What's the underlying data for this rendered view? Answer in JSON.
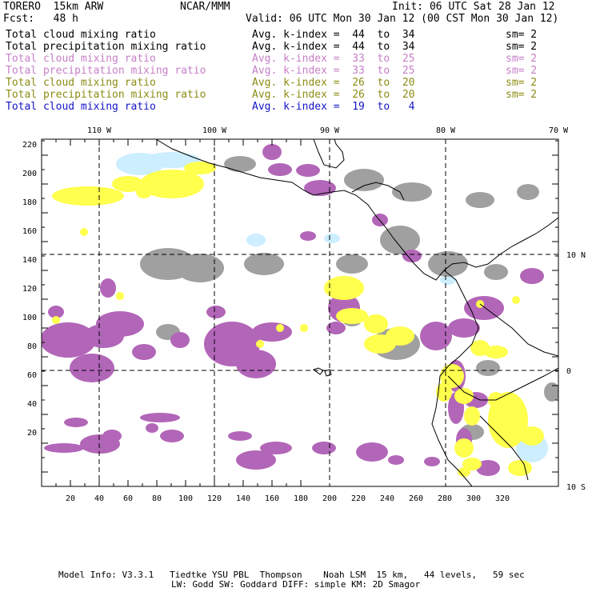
{
  "header": {
    "model": "TORERO  15km ARW",
    "org": "NCAR/MMM",
    "init": "Init: 06 UTC Sat 28 Jan 12",
    "fcst": "Fcst:   48 h",
    "valid": "Valid: 06 UTC Mon 30 Jan 12 (00 CST Mon 30 Jan 12)"
  },
  "legend": [
    {
      "field": "Total cloud mixing ratio",
      "stat": "Avg. k-index =  44  to  34",
      "sm": "sm= 2",
      "color": "#000000"
    },
    {
      "field": "Total precipitation mixing ratio",
      "stat": "Avg. k-index =  44  to  34",
      "sm": "sm= 2",
      "color": "#000000"
    },
    {
      "field": "Total cloud mixing ratio",
      "stat": "Avg. k-index =  33  to  25",
      "sm": "sm= 2",
      "color": "#c77fc7"
    },
    {
      "field": "Total precipitation mixing ratio",
      "stat": "Avg. k-index =  33  to  25",
      "sm": "sm= 2",
      "color": "#c77fc7"
    },
    {
      "field": "Total cloud mixing ratio",
      "stat": "Avg. k-index =  26  to  20",
      "sm": "sm= 2",
      "color": "#8c8c14"
    },
    {
      "field": "Total precipitation mixing ratio",
      "stat": "Avg. k-index =  26  to  20",
      "sm": "sm= 2",
      "color": "#8c8c14"
    },
    {
      "field": "Total cloud mixing ratio",
      "stat": "Avg. k-index =  19  to   4",
      "sm": "",
      "color": "#1414c8"
    }
  ],
  "map": {
    "lon_labels": [
      "110 W",
      "100 W",
      "90 W",
      "80 W",
      "70 W"
    ],
    "lat_labels": [
      "10 N",
      "0",
      "10 S"
    ],
    "y_ticks": [
      "220",
      "200",
      "180",
      "160",
      "140",
      "120",
      "100",
      "80",
      "60",
      "40",
      "20"
    ],
    "x_ticks": [
      "20",
      "40",
      "60",
      "80",
      "100",
      "120",
      "140",
      "160",
      "180",
      "200",
      "220",
      "240",
      "260",
      "280",
      "300",
      "320"
    ],
    "fill_colors": {
      "gray": "#a0a0a0",
      "purple": "#b266b8",
      "yellow": "#ffff4d",
      "lightblue": "#cceeff"
    }
  },
  "footer": {
    "line1": "Model Info: V3.3.1   Tiedtke YSU PBL  Thompson    Noah LSM  15 km,   44 levels,   59 sec",
    "line2": "LW: Godd SW: Goddard DIFF: simple KM: 2D Smagor"
  }
}
